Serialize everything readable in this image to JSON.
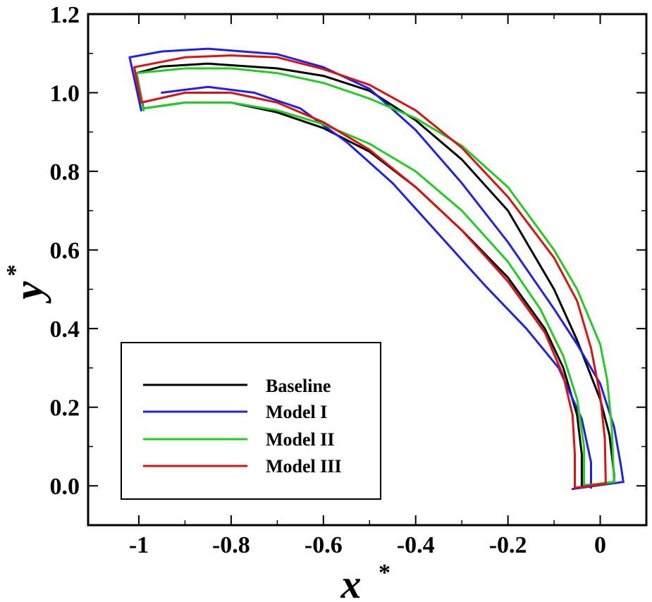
{
  "chart_data": {
    "type": "line",
    "title": "",
    "xlabel": "x",
    "xlabel_superscript": "*",
    "ylabel": "y",
    "ylabel_superscript": "*",
    "xlim": [
      -1.11,
      0.1
    ],
    "ylim": [
      -0.1,
      1.2
    ],
    "x_ticks": [
      -1,
      -0.8,
      -0.6,
      -0.4,
      -0.2,
      0
    ],
    "x_tick_labels": [
      "-1",
      "-0.8",
      "-0.6",
      "-0.4",
      "-0.2",
      "0"
    ],
    "y_ticks": [
      0,
      0.2,
      0.4,
      0.6,
      0.8,
      1.0,
      1.2
    ],
    "y_tick_labels": [
      "0.0",
      "0.2",
      "0.4",
      "0.6",
      "0.8",
      "1.0",
      "1.2"
    ],
    "grid": false,
    "legend_position": "lower-left",
    "series": [
      {
        "name": "Baseline",
        "color": "#000000",
        "outer": [
          [
            -1.005,
            1.05
          ],
          [
            -0.95,
            1.067
          ],
          [
            -0.85,
            1.074
          ],
          [
            -0.7,
            1.062
          ],
          [
            -0.6,
            1.043
          ],
          [
            -0.5,
            1.005
          ],
          [
            -0.4,
            0.93
          ],
          [
            -0.3,
            0.83
          ],
          [
            -0.2,
            0.7
          ],
          [
            -0.1,
            0.5
          ],
          [
            -0.05,
            0.37
          ],
          [
            0,
            0.22
          ],
          [
            0.02,
            0.13
          ],
          [
            0.03,
            0.03
          ],
          [
            0.03,
            0.01
          ]
        ],
        "inner": [
          [
            -0.04,
            0
          ],
          [
            -0.04,
            0.08
          ],
          [
            -0.05,
            0.18
          ],
          [
            -0.08,
            0.3
          ],
          [
            -0.12,
            0.4
          ],
          [
            -0.2,
            0.53
          ],
          [
            -0.3,
            0.65
          ],
          [
            -0.4,
            0.76
          ],
          [
            -0.5,
            0.85
          ],
          [
            -0.6,
            0.91
          ],
          [
            -0.7,
            0.95
          ],
          [
            -0.8,
            0.975
          ],
          [
            -0.9,
            0.975
          ],
          [
            -0.99,
            0.96
          ]
        ],
        "cap_start": [
          [
            -1.005,
            1.05
          ],
          [
            -0.99,
            0.96
          ]
        ],
        "cap_end": [
          [
            -0.04,
            0
          ],
          [
            0.03,
            0.01
          ]
        ]
      },
      {
        "name": "Model I",
        "color": "#2020ee",
        "outer": [
          [
            -1.02,
            1.09
          ],
          [
            -0.95,
            1.105
          ],
          [
            -0.85,
            1.112
          ],
          [
            -0.7,
            1.098
          ],
          [
            -0.6,
            1.065
          ],
          [
            -0.5,
            1.01
          ],
          [
            -0.4,
            0.905
          ],
          [
            -0.3,
            0.77
          ],
          [
            -0.2,
            0.62
          ],
          [
            -0.1,
            0.45
          ],
          [
            -0.05,
            0.36
          ],
          [
            0,
            0.26
          ],
          [
            0.03,
            0.15
          ],
          [
            0.045,
            0.05
          ],
          [
            0.05,
            0.01
          ]
        ],
        "inner": [
          [
            -0.02,
            -0.005
          ],
          [
            -0.02,
            0.06
          ],
          [
            -0.04,
            0.17
          ],
          [
            -0.09,
            0.3
          ],
          [
            -0.16,
            0.4
          ],
          [
            -0.25,
            0.51
          ],
          [
            -0.35,
            0.64
          ],
          [
            -0.45,
            0.77
          ],
          [
            -0.55,
            0.875
          ],
          [
            -0.65,
            0.96
          ],
          [
            -0.75,
            1.0
          ],
          [
            -0.85,
            1.015
          ],
          [
            -0.95,
            1.0
          ]
        ],
        "cap_start": [
          [
            -1.02,
            1.09
          ],
          [
            -0.995,
            0.955
          ]
        ],
        "cap_end": [
          [
            -0.06,
            -0.008
          ],
          [
            0.05,
            0.01
          ]
        ]
      },
      {
        "name": "Model II",
        "color": "#22cc22",
        "outer": [
          [
            -1.005,
            1.05
          ],
          [
            -0.9,
            1.062
          ],
          [
            -0.8,
            1.062
          ],
          [
            -0.7,
            1.05
          ],
          [
            -0.6,
            1.025
          ],
          [
            -0.5,
            0.985
          ],
          [
            -0.4,
            0.935
          ],
          [
            -0.3,
            0.865
          ],
          [
            -0.2,
            0.76
          ],
          [
            -0.1,
            0.6
          ],
          [
            -0.05,
            0.5
          ],
          [
            0,
            0.36
          ],
          [
            0.015,
            0.27
          ],
          [
            0.025,
            0.15
          ],
          [
            0.03,
            0.01
          ]
        ],
        "inner": [
          [
            -0.035,
            0
          ],
          [
            -0.035,
            0.1
          ],
          [
            -0.05,
            0.22
          ],
          [
            -0.08,
            0.33
          ],
          [
            -0.13,
            0.45
          ],
          [
            -0.2,
            0.57
          ],
          [
            -0.3,
            0.7
          ],
          [
            -0.4,
            0.8
          ],
          [
            -0.5,
            0.87
          ],
          [
            -0.6,
            0.92
          ],
          [
            -0.7,
            0.955
          ],
          [
            -0.8,
            0.975
          ],
          [
            -0.9,
            0.975
          ],
          [
            -0.99,
            0.96
          ]
        ],
        "cap_start": [
          [
            -1.005,
            1.05
          ],
          [
            -0.99,
            0.955
          ]
        ],
        "cap_end": [
          [
            -0.035,
            0
          ],
          [
            0.03,
            0.01
          ]
        ]
      },
      {
        "name": "Model III",
        "color": "#dd1111",
        "outer": [
          [
            -1.01,
            1.065
          ],
          [
            -0.9,
            1.09
          ],
          [
            -0.8,
            1.095
          ],
          [
            -0.7,
            1.09
          ],
          [
            -0.6,
            1.06
          ],
          [
            -0.5,
            1.02
          ],
          [
            -0.4,
            0.955
          ],
          [
            -0.3,
            0.86
          ],
          [
            -0.2,
            0.735
          ],
          [
            -0.1,
            0.58
          ],
          [
            -0.05,
            0.47
          ],
          [
            -0.02,
            0.35
          ],
          [
            0.0,
            0.23
          ],
          [
            0.01,
            0.12
          ],
          [
            0.012,
            0.005
          ]
        ],
        "inner": [
          [
            -0.055,
            -0.005
          ],
          [
            -0.055,
            0.08
          ],
          [
            -0.06,
            0.18
          ],
          [
            -0.08,
            0.28
          ],
          [
            -0.12,
            0.39
          ],
          [
            -0.2,
            0.52
          ],
          [
            -0.3,
            0.65
          ],
          [
            -0.4,
            0.76
          ],
          [
            -0.5,
            0.855
          ],
          [
            -0.6,
            0.925
          ],
          [
            -0.7,
            0.975
          ],
          [
            -0.8,
            1.0
          ],
          [
            -0.9,
            1.0
          ],
          [
            -0.995,
            0.975
          ]
        ],
        "cap_start": [
          [
            -1.01,
            1.065
          ],
          [
            -0.995,
            0.975
          ]
        ],
        "cap_end": [
          [
            -0.055,
            -0.005
          ],
          [
            0.012,
            0.005
          ]
        ]
      }
    ]
  }
}
